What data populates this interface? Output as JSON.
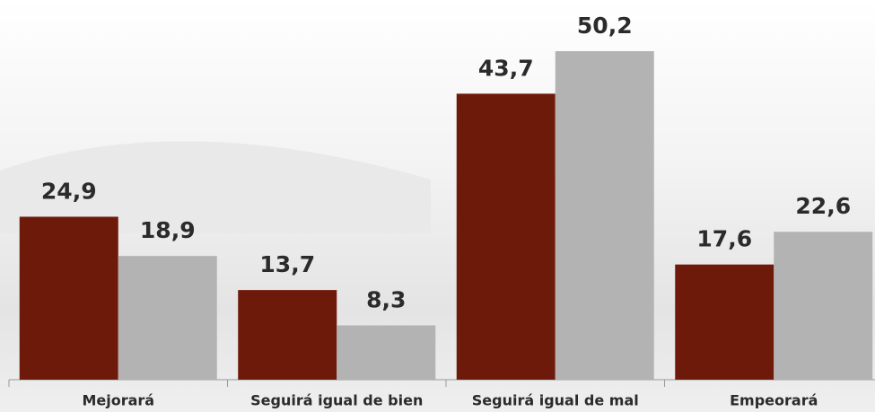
{
  "chart_data": {
    "type": "bar",
    "categories": [
      "Mejorará",
      "Seguirá igual de bien",
      "Seguirá igual de mal",
      "Empeorará"
    ],
    "series": [
      {
        "color": "#6e1a0b",
        "values": [
          24.9,
          13.7,
          43.7,
          17.6
        ],
        "value_labels": [
          "24,9",
          "13,7",
          "43,7",
          "17,6"
        ]
      },
      {
        "color": "#b3b3b3",
        "values": [
          18.9,
          8.3,
          50.2,
          22.6
        ],
        "value_labels": [
          "18,9",
          "8,3",
          "50,2",
          "22,6"
        ]
      }
    ]
  }
}
